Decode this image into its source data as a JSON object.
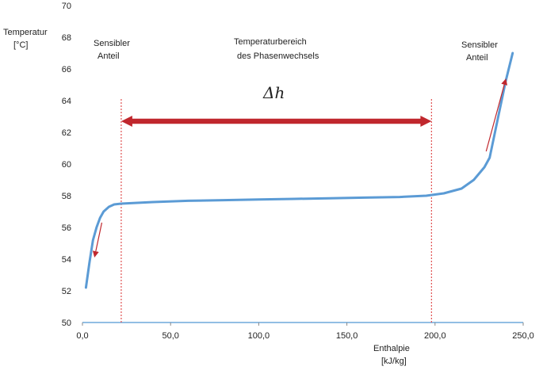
{
  "chart_data": {
    "type": "line",
    "title": "",
    "xlabel_lines": [
      "Enthalpie",
      "[kJ/kg]"
    ],
    "ylabel_lines": [
      "Temperatur",
      "[°C]"
    ],
    "xlim": [
      0,
      250
    ],
    "ylim": [
      50,
      70
    ],
    "x_ticks": [
      0,
      50,
      100,
      150,
      200,
      250
    ],
    "x_tick_labels": [
      "0,0",
      "50,0",
      "100,0",
      "150,0",
      "200,0",
      "250,0"
    ],
    "y_ticks": [
      50,
      52,
      54,
      56,
      58,
      60,
      62,
      64,
      66,
      68,
      70
    ],
    "y_tick_labels": [
      "50",
      "52",
      "54",
      "56",
      "58",
      "60",
      "62",
      "64",
      "66",
      "68",
      "70"
    ],
    "grid": false,
    "legend": "none",
    "series": [
      {
        "color": "#5b9bd5",
        "points": [
          [
            2,
            52.2
          ],
          [
            4,
            53.8
          ],
          [
            6,
            55.2
          ],
          [
            8,
            56.0
          ],
          [
            10,
            56.6
          ],
          [
            12,
            57.0
          ],
          [
            15,
            57.3
          ],
          [
            18,
            57.45
          ],
          [
            22,
            57.5
          ],
          [
            40,
            57.6
          ],
          [
            60,
            57.68
          ],
          [
            80,
            57.72
          ],
          [
            100,
            57.76
          ],
          [
            120,
            57.8
          ],
          [
            140,
            57.84
          ],
          [
            160,
            57.88
          ],
          [
            180,
            57.92
          ],
          [
            195,
            58.0
          ],
          [
            205,
            58.15
          ],
          [
            215,
            58.45
          ],
          [
            222,
            59.0
          ],
          [
            228,
            59.8
          ],
          [
            231,
            60.4
          ],
          [
            234,
            62.0
          ],
          [
            237,
            63.6
          ],
          [
            240,
            65.2
          ],
          [
            244,
            67.0
          ]
        ]
      }
    ],
    "annotations": {
      "sensible_left": [
        "Sensibler",
        "Anteil"
      ],
      "phase_change": [
        "Temperaturbereich",
        "des Phasenwechsels"
      ],
      "sensible_right": [
        "Sensibler",
        "Anteil"
      ],
      "delta_h": "Δh",
      "vertical_lines_x": [
        22,
        198
      ],
      "delta_arrow": {
        "x_from": 22,
        "x_to": 198,
        "y": 62.7
      },
      "small_arrows": [
        {
          "from": [
            11,
            56.3
          ],
          "to": [
            7,
            54.2
          ]
        },
        {
          "from": [
            229,
            60.8
          ],
          "to": [
            240,
            65.3
          ]
        }
      ],
      "accent_color": "#c0272d",
      "dotted_color": "#e05050"
    }
  }
}
